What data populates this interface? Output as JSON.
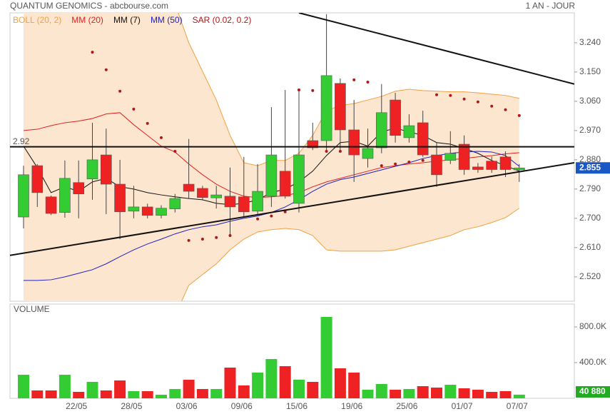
{
  "header": {
    "title": "QUANTUM GENOMICS - abcbourse.com",
    "period": "1 AN - JOUR"
  },
  "chart_data": [
    {
      "type": "candlestick",
      "up_color": "#33cc33",
      "down_color": "#ee2222",
      "open": [
        2.704,
        2.862,
        2.766,
        2.718,
        2.81,
        2.821,
        2.895,
        2.805,
        2.722,
        2.735,
        2.709,
        2.729,
        2.805,
        2.792,
        2.763,
        2.768,
        2.766,
        2.722,
        2.768,
        2.845,
        2.746,
        2.939,
        2.939,
        3.115,
        2.972,
        2.884,
        2.917,
        3.064,
        2.948,
        2.994,
        2.895,
        2.878,
        2.928,
        2.858,
        2.876,
        2.889,
        2.849
      ],
      "high": [
        2.862,
        2.867,
        2.77,
        2.878,
        2.878,
        2.994,
        2.976,
        2.88,
        2.8,
        2.745,
        2.74,
        2.775,
        2.944,
        2.8,
        2.8,
        2.856,
        2.889,
        2.867,
        3.042,
        3.095,
        3.099,
        2.994,
        3.328,
        3.13,
        3.064,
        2.976,
        3.113,
        3.086,
        3.02,
        3.031,
        2.933,
        2.968,
        2.955,
        2.87,
        2.89,
        2.906,
        2.867
      ],
      "low": [
        2.669,
        2.735,
        2.71,
        2.702,
        2.7,
        2.757,
        2.713,
        2.636,
        2.7,
        2.7,
        2.7,
        2.718,
        2.761,
        2.755,
        2.73,
        2.647,
        2.702,
        2.713,
        2.735,
        2.761,
        2.718,
        2.91,
        2.91,
        2.91,
        2.812,
        2.856,
        2.9,
        2.933,
        2.933,
        2.889,
        2.797,
        2.867,
        2.834,
        2.84,
        2.84,
        2.827,
        2.812
      ],
      "close": [
        2.834,
        2.779,
        2.715,
        2.823,
        2.775,
        2.88,
        2.805,
        2.72,
        2.735,
        2.709,
        2.731,
        2.761,
        2.783,
        2.764,
        2.772,
        2.735,
        2.72,
        2.783,
        2.895,
        2.768,
        2.895,
        2.917,
        3.139,
        2.972,
        2.895,
        2.915,
        3.025,
        2.955,
        2.985,
        2.895,
        2.834,
        2.9,
        2.85,
        2.85,
        2.85,
        2.85,
        2.855
      ],
      "series": [
        {
          "name": "BOLL (20, 2)",
          "color": "#f0a040",
          "fill": "#fde6cf",
          "upper": [
            3.36,
            3.36,
            3.36,
            3.36,
            3.36,
            3.36,
            3.36,
            3.36,
            3.36,
            3.36,
            3.36,
            3.36,
            3.24,
            3.152,
            3.064,
            2.955,
            2.871,
            2.862,
            2.878,
            2.878,
            2.9,
            2.955,
            3.031,
            3.047,
            3.053,
            3.064,
            3.075,
            3.091,
            3.097,
            3.093,
            3.091,
            3.089,
            3.089,
            3.086,
            3.082,
            3.078,
            3.069
          ],
          "lower": [
            2.4,
            2.4,
            2.4,
            2.4,
            2.4,
            2.4,
            2.4,
            2.4,
            2.4,
            2.4,
            2.4,
            2.4,
            2.494,
            2.527,
            2.56,
            2.603,
            2.636,
            2.658,
            2.665,
            2.669,
            2.665,
            2.647,
            2.603,
            2.599,
            2.599,
            2.599,
            2.599,
            2.603,
            2.614,
            2.625,
            2.636,
            2.647,
            2.665,
            2.674,
            2.687,
            2.702,
            2.731
          ]
        },
        {
          "name": "MM (20)",
          "color": "#e02020",
          "values": [
            2.97,
            2.974,
            2.985,
            2.994,
            2.999,
            3.007,
            3.021,
            3.025,
            2.988,
            2.955,
            2.922,
            2.904,
            2.867,
            2.834,
            2.805,
            2.783,
            2.768,
            2.764,
            2.766,
            2.77,
            2.779,
            2.797,
            2.812,
            2.823,
            2.834,
            2.845,
            2.856,
            2.862,
            2.867,
            2.871,
            2.876,
            2.88,
            2.884,
            2.889,
            2.893,
            2.898,
            2.902
          ]
        },
        {
          "name": "MM (7)",
          "color": "#111111",
          "values": [
            2.922,
            2.856,
            2.779,
            2.797,
            2.783,
            2.812,
            2.823,
            2.797,
            2.79,
            2.779,
            2.772,
            2.766,
            2.761,
            2.757,
            2.746,
            2.742,
            2.746,
            2.757,
            2.779,
            2.79,
            2.812,
            2.845,
            2.893,
            2.933,
            2.937,
            2.922,
            2.966,
            2.977,
            2.966,
            2.955,
            2.933,
            2.928,
            2.915,
            2.9,
            2.878,
            2.862,
            2.845
          ]
        },
        {
          "name": "MM (50)",
          "color": "#2020c0",
          "values": [
            2.509,
            2.509,
            2.511,
            2.52,
            2.531,
            2.542,
            2.56,
            2.582,
            2.603,
            2.621,
            2.636,
            2.652,
            2.665,
            2.674,
            2.68,
            2.691,
            2.7,
            2.707,
            2.718,
            2.735,
            2.757,
            2.783,
            2.805,
            2.819,
            2.827,
            2.838,
            2.849,
            2.86,
            2.871,
            2.884,
            2.893,
            2.9,
            2.904,
            2.906,
            2.904,
            2.893,
            2.86
          ]
        },
        {
          "name": "SAR (0.02, 0.2)",
          "color": "#b01818",
          "style": "dots",
          "values": [
            null,
            null,
            null,
            null,
            null,
            3.211,
            3.157,
            3.091,
            3.036,
            2.992,
            2.948,
            2.906,
            2.632,
            2.636,
            2.641,
            2.647,
            null,
            2.698,
            2.707,
            2.72,
            3.095,
            3.093,
            2.906,
            2.906,
            3.126,
            3.119,
            2.862,
            2.867,
            2.873,
            2.878,
            3.08,
            3.078,
            3.067,
            3.058,
            3.045,
            3.034,
            3.016
          ]
        }
      ],
      "trend_lines": [
        {
          "x": [
            20,
            40
          ],
          "y": [
            3.332,
            3.113
          ]
        },
        {
          "x": [
            -1,
            40
          ],
          "y": [
            2.586,
            2.871
          ]
        }
      ],
      "level": 2.92,
      "ylim": [
        2.445,
        3.332
      ],
      "yticks": [
        {
          "value": 3.24,
          "label": "3.240"
        },
        {
          "value": 3.15,
          "label": "3.150"
        },
        {
          "value": 3.06,
          "label": "3.060"
        },
        {
          "value": 2.97,
          "label": "2.970"
        },
        {
          "value": 2.88,
          "label": "2.880"
        },
        {
          "value": 2.79,
          "label": "2.790"
        },
        {
          "value": 2.7,
          "label": "2.700"
        },
        {
          "value": 2.61,
          "label": "2.610"
        },
        {
          "value": 2.52,
          "label": "2.520"
        }
      ]
    },
    {
      "type": "bar",
      "title": "VOLUME",
      "categories": [
        null,
        null,
        null,
        null,
        "22/05",
        null,
        null,
        null,
        "28/05",
        null,
        null,
        null,
        "03/06",
        null,
        null,
        null,
        "09/06",
        null,
        null,
        null,
        "15/06",
        null,
        null,
        null,
        "19/06",
        null,
        null,
        null,
        "25/06",
        null,
        null,
        null,
        "01/07",
        null,
        null,
        null,
        "07/07"
      ],
      "values": [
        264000,
        88000,
        88000,
        264000,
        72000,
        184000,
        88000,
        200000,
        80000,
        80000,
        40000,
        104000,
        208000,
        104000,
        104000,
        344000,
        144000,
        288000,
        440000,
        360000,
        208000,
        184000,
        912000,
        336000,
        288000,
        96000,
        160000,
        96000,
        104000,
        136000,
        120000,
        152000,
        112000,
        96000,
        72000,
        80000,
        40880
      ],
      "value_labels": [
        null,
        null,
        null,
        null,
        null,
        null,
        null,
        null,
        null,
        null,
        null,
        null,
        null,
        null,
        null,
        null,
        null,
        null,
        null,
        null,
        null,
        null,
        null,
        null,
        null,
        null,
        null,
        null,
        null,
        null,
        null,
        null,
        null,
        null,
        null,
        null,
        "40 880"
      ],
      "ylim": [
        0,
        1056000
      ],
      "yticks": [
        {
          "value": 400000,
          "label": "400.0K"
        },
        {
          "value": 800000,
          "label": "800.0K"
        }
      ]
    }
  ]
}
